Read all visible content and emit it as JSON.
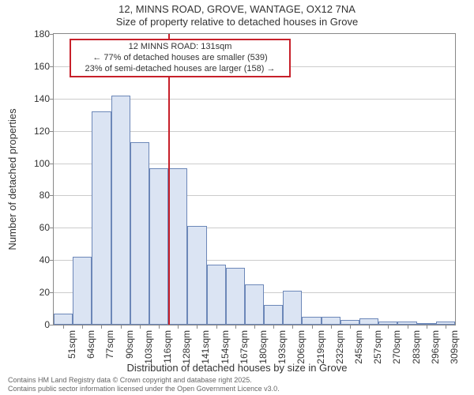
{
  "title": {
    "line1": "12, MINNS ROAD, GROVE, WANTAGE, OX12 7NA",
    "line2": "Size of property relative to detached houses in Grove"
  },
  "chart": {
    "type": "histogram",
    "background_color": "#ffffff",
    "border_color": "#888888",
    "grid_color": "#cccccc",
    "bar_fill_color": "#dbe4f3",
    "bar_border_color": "#6c87b8",
    "reference_line_color": "#c7202a",
    "annotation_border_color": "#c7202a",
    "ylabel": "Number of detached properties",
    "xlabel": "Distribution of detached houses by size in Grove",
    "ylim": [
      0,
      180
    ],
    "ytick_step": 20,
    "categories": [
      "51sqm",
      "64sqm",
      "77sqm",
      "90sqm",
      "103sqm",
      "116sqm",
      "128sqm",
      "141sqm",
      "154sqm",
      "167sqm",
      "180sqm",
      "193sqm",
      "206sqm",
      "219sqm",
      "232sqm",
      "245sqm",
      "257sqm",
      "270sqm",
      "283sqm",
      "296sqm",
      "309sqm"
    ],
    "values": [
      7,
      42,
      132,
      142,
      113,
      97,
      97,
      61,
      37,
      35,
      25,
      12,
      21,
      5,
      5,
      3,
      4,
      2,
      2,
      1,
      2
    ],
    "reference_index_after": 6,
    "tick_fontsize": 12,
    "label_fontsize": 13,
    "bar_width_ratio": 1.0
  },
  "annotation": {
    "line1": "12 MINNS ROAD: 131sqm",
    "line2": "← 77% of detached houses are smaller (539)",
    "line3": "23% of semi-detached houses are larger (158) →"
  },
  "footer": {
    "line1": "Contains HM Land Registry data © Crown copyright and database right 2025.",
    "line2": "Contains public sector information licensed under the Open Government Licence v3.0."
  }
}
